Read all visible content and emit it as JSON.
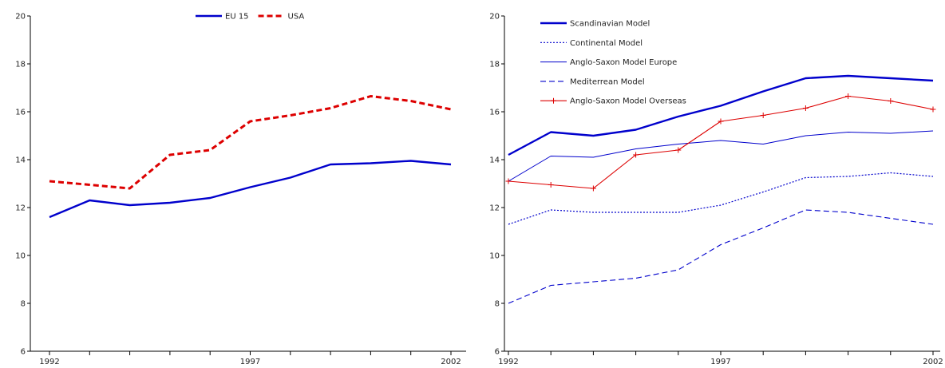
{
  "chart_data": [
    {
      "type": "line",
      "x": [
        1992,
        1993,
        1994,
        1995,
        1996,
        1997,
        1998,
        1999,
        2000,
        2001,
        2002
      ],
      "x_tick_labels": [
        "1992",
        "1997",
        "2002"
      ],
      "ylim": [
        6,
        20
      ],
      "y_ticks": [
        6,
        8,
        10,
        12,
        14,
        16,
        18,
        20
      ],
      "title": "",
      "xlabel": "",
      "ylabel": "",
      "grid": false,
      "legend_position": "top-center",
      "series": [
        {
          "name": "EU 15",
          "color": "#0000cc",
          "dash": "solid",
          "width": 2.4,
          "marker": "none",
          "values": [
            11.6,
            12.3,
            12.1,
            12.2,
            12.4,
            12.85,
            13.25,
            13.8,
            13.85,
            13.95,
            13.8
          ]
        },
        {
          "name": "USA",
          "color": "#dd0000",
          "dash": "dashed",
          "width": 3,
          "marker": "none",
          "values": [
            13.1,
            12.95,
            12.8,
            14.2,
            14.4,
            15.6,
            15.85,
            16.15,
            16.65,
            16.45,
            16.1
          ]
        }
      ]
    },
    {
      "type": "line",
      "x": [
        1992,
        1993,
        1994,
        1995,
        1996,
        1997,
        1998,
        1999,
        2000,
        2001,
        2002
      ],
      "x_tick_labels": [
        "1992",
        "1997",
        "2002"
      ],
      "ylim": [
        6,
        20
      ],
      "y_ticks": [
        6,
        8,
        10,
        12,
        14,
        16,
        18,
        20
      ],
      "title": "",
      "xlabel": "",
      "ylabel": "",
      "grid": false,
      "legend_position": "top-left",
      "series": [
        {
          "name": "Scandinavian Model",
          "color": "#0000cc",
          "dash": "solid",
          "width": 2.4,
          "marker": "none",
          "values": [
            14.2,
            15.15,
            15.0,
            15.25,
            15.8,
            16.25,
            16.85,
            17.4,
            17.5,
            17.4,
            17.3
          ]
        },
        {
          "name": "Continental Model",
          "color": "#0000cc",
          "dash": "dotted",
          "width": 1.2,
          "marker": "none",
          "values": [
            11.3,
            11.9,
            11.8,
            11.8,
            11.8,
            12.1,
            12.65,
            13.25,
            13.3,
            13.45,
            13.3
          ]
        },
        {
          "name": "Anglo-Saxon Model Europe",
          "color": "#0000cc",
          "dash": "solid",
          "width": 1,
          "marker": "none",
          "values": [
            13.1,
            14.15,
            14.1,
            14.45,
            14.65,
            14.8,
            14.65,
            15.0,
            15.15,
            15.1,
            15.2
          ]
        },
        {
          "name": "Mediterrean Model",
          "color": "#0000cc",
          "dash": "dashed",
          "width": 1.1,
          "marker": "none",
          "values": [
            8.0,
            8.75,
            8.9,
            9.05,
            9.4,
            10.45,
            11.15,
            11.9,
            11.8,
            11.55,
            11.3
          ]
        },
        {
          "name": "Anglo-Saxon Model Overseas",
          "color": "#dd0000",
          "dash": "solid",
          "width": 1.1,
          "marker": "plus",
          "values": [
            13.1,
            12.95,
            12.8,
            14.2,
            14.4,
            15.6,
            15.85,
            16.15,
            16.65,
            16.45,
            16.1
          ]
        }
      ]
    }
  ]
}
